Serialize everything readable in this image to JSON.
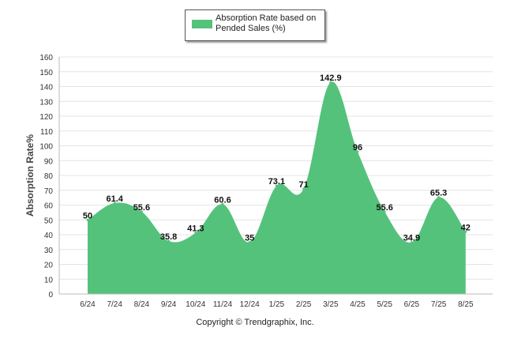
{
  "legend": {
    "label": "Absorption Rate based on Pended Sales (%)",
    "color": "#55c27b"
  },
  "footer": {
    "copyright": "Copyright © Trendgraphix, Inc."
  },
  "chart_data": {
    "type": "area",
    "categories": [
      "6/24",
      "7/24",
      "8/24",
      "9/24",
      "10/24",
      "11/24",
      "12/24",
      "1/25",
      "2/25",
      "3/25",
      "4/25",
      "5/25",
      "6/25",
      "7/25",
      "8/25"
    ],
    "series": [
      {
        "name": "Absorption Rate based on Pended Sales (%)",
        "values": [
          50,
          61.4,
          55.6,
          35.8,
          41.3,
          60.6,
          35,
          73.1,
          71,
          142.9,
          96,
          55.6,
          34.9,
          65.3,
          42
        ],
        "color": "#55c27b"
      }
    ],
    "data_labels": [
      "50",
      "61.4",
      "55.6",
      "35.8",
      "41.3",
      "60.6",
      "35",
      "73.1",
      "71",
      "142.9",
      "96",
      "55.6",
      "34.9",
      "65.3",
      "42"
    ],
    "ylabel": "Absorption Rate%",
    "xlabel": "",
    "ylim": [
      0,
      160
    ],
    "yticks": [
      0,
      10,
      20,
      30,
      40,
      50,
      60,
      70,
      80,
      90,
      100,
      110,
      120,
      130,
      140,
      150,
      160
    ],
    "grid": true,
    "legend_position": "top-center"
  }
}
